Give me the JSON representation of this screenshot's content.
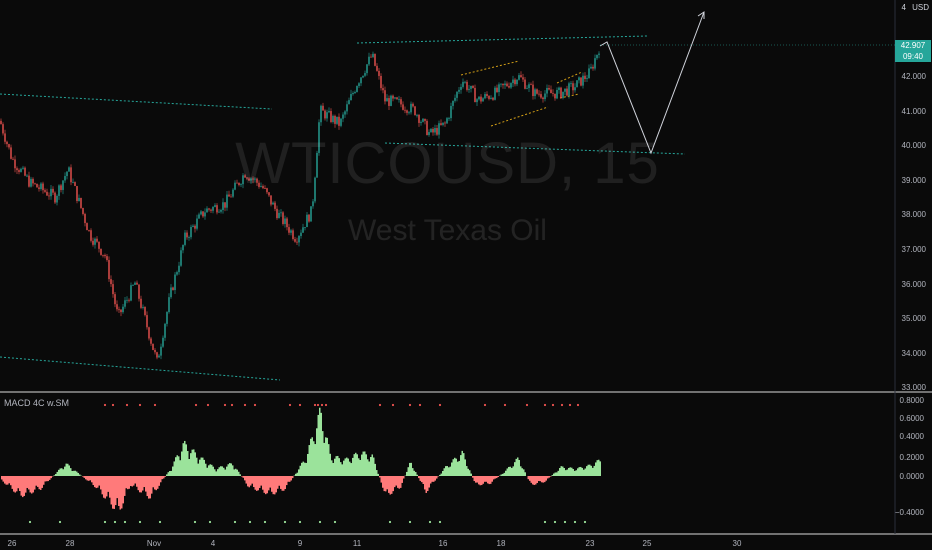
{
  "main": {
    "symbol": "WTICOUSD, 15",
    "description": "West Texas Oil",
    "currency": "USD",
    "top_value": "4",
    "price_axis": [
      "42.000",
      "41.000",
      "40.000",
      "39.000",
      "38.000",
      "37.000",
      "36.000",
      "35.000",
      "34.000",
      "33.000"
    ],
    "last_price": {
      "value": "42.907",
      "countdown": "09:40"
    }
  },
  "indicator": {
    "title": "MACD 4C w.SM",
    "axis": [
      "0.8000",
      "0.6000",
      "0.4000",
      "0.2000",
      "0.0000",
      "−0.4000"
    ]
  },
  "time_axis": [
    "26",
    "28",
    "Nov",
    "4",
    "9",
    "11",
    "16",
    "18",
    "23",
    "25",
    "30"
  ],
  "colors": {
    "background": "#0a0a0a",
    "up_candle": "#26a69a",
    "down_candle": "#ef5350",
    "macd_up": "#9be39b",
    "macd_down": "#ff7a7a",
    "trendline": "#26a69a",
    "flag": "#d4a017",
    "projection": "#d1d4dc",
    "price_tag": "#26a69a"
  },
  "chart_data": {
    "type": "candlestick",
    "title": "WTICOUSD, 15",
    "ylim": [
      33.0,
      43.0
    ],
    "key_prices": [
      {
        "label": "start",
        "value": 40.7
      },
      {
        "label": "local low",
        "value": 35.0
      },
      {
        "label": "swing low",
        "value": 33.6
      },
      {
        "label": "swing high",
        "value": 42.7
      },
      {
        "label": "mid low",
        "value": 40.1
      },
      {
        "label": "last",
        "value": 42.907
      }
    ],
    "projection": [
      {
        "label": "target low",
        "value": 39.8
      },
      {
        "label": "target high",
        "value": 44.9
      }
    ]
  }
}
